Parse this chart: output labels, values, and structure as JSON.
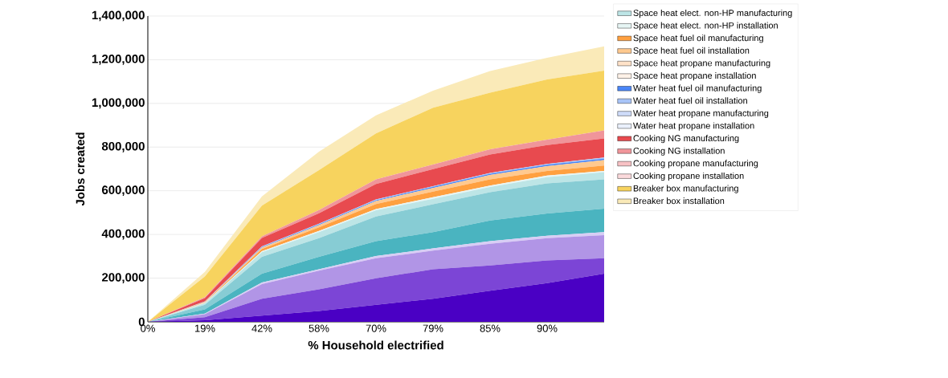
{
  "chart_data": {
    "type": "area",
    "stacked": true,
    "xlabel": "% Household electrified",
    "ylabel": "Jobs created",
    "categories": [
      "0%",
      "19%",
      "42%",
      "58%",
      "70%",
      "79%",
      "85%",
      "90%",
      null
    ],
    "ylim": [
      0,
      1400000
    ],
    "yticks": [
      0,
      {
        "value": 200000,
        "label": "200,000"
      },
      {
        "value": 400000,
        "label": "400,000"
      },
      {
        "value": 600000,
        "label": "600,000"
      },
      {
        "value": 800000,
        "label": "800,000"
      },
      {
        "value": 1000000,
        "label": "1,000,000"
      },
      {
        "value": 1200000,
        "label": "1,200,000"
      },
      {
        "value": 1400000,
        "label": "1,400,000"
      }
    ],
    "grid": "y",
    "legend": "right",
    "series": [
      {
        "color": "#4a00c4",
        "values": [
          0,
          7000,
          28000,
          50000,
          78000,
          106000,
          142000,
          177000,
          220000
        ]
      },
      {
        "color": "#7c45d6",
        "values": [
          0,
          14000,
          78000,
          99000,
          121000,
          135000,
          116000,
          104000,
          71000
        ]
      },
      {
        "color": "#b195e6",
        "values": [
          0,
          14000,
          67000,
          85000,
          92000,
          85000,
          99000,
          102000,
          106000
        ]
      },
      {
        "color": "#d8cdf5",
        "values": [
          0,
          3000,
          7000,
          7000,
          10000,
          10000,
          12000,
          11000,
          14000
        ]
      },
      {
        "color": "#4ab4c0",
        "values": [
          0,
          19000,
          40000,
          57000,
          68000,
          75000,
          95000,
          102000,
          107000
        ]
      },
      {
        "color": "#87ccd4",
        "values": [
          0,
          21000,
          78000,
          85000,
          113000,
          127000,
          129000,
          138000,
          134000
        ]
      },
      {
        "name": "Space heat elect. non-HP manufacturing",
        "color": "#bde5e6",
        "values": [
          0,
          7000,
          21000,
          28000,
          29000,
          25000,
          24000,
          28000,
          33000
        ]
      },
      {
        "name": "Space heat elect. non-HP installation",
        "color": "#e6f5f4",
        "values": [
          0,
          2000,
          4000,
          5000,
          5000,
          7000,
          7000,
          8000,
          6000
        ]
      },
      {
        "name": "Space heat fuel oil manufacturing",
        "color": "#ffa040",
        "values": [
          0,
          2000,
          10000,
          17000,
          23000,
          26000,
          28000,
          21000,
          25000
        ]
      },
      {
        "name": "Space heat fuel oil installation",
        "color": "#ffc98f",
        "values": [
          0,
          3000,
          7000,
          10000,
          14000,
          17000,
          20000,
          22000,
          24000
        ]
      },
      {
        "name": "Space heat propane manufacturing",
        "color": "#ffe2c8",
        "values": [
          null,
          null,
          null,
          null,
          null,
          null,
          null,
          null,
          null
        ]
      },
      {
        "name": "Space heat propane installation",
        "color": "#fff2e8",
        "values": [
          null,
          null,
          null,
          null,
          null,
          null,
          null,
          null,
          null
        ]
      },
      {
        "name": "Water heat fuel oil manufacturing",
        "color": "#4a86f7",
        "values": [
          0,
          1000,
          3000,
          3000,
          4000,
          5000,
          6000,
          6000,
          7000
        ]
      },
      {
        "name": "Water heat fuel oil installation",
        "color": "#a8c4f7",
        "values": [
          0,
          1000,
          2000,
          3000,
          3000,
          3000,
          4000,
          4000,
          5000
        ]
      },
      {
        "name": "Water heat propane manufacturing",
        "color": "#cfdcf9",
        "values": [
          null,
          null,
          null,
          null,
          null,
          null,
          null,
          null,
          null
        ]
      },
      {
        "name": "Water heat propane installation",
        "color": "#eaf0fc",
        "values": [
          null,
          null,
          null,
          null,
          null,
          null,
          null,
          null,
          null
        ]
      },
      {
        "name": "Cooking NG manufacturing",
        "color": "#e84a4f",
        "values": [
          0,
          14000,
          39000,
          48000,
          71000,
          78000,
          84000,
          86000,
          88000
        ]
      },
      {
        "name": "Cooking NG installation",
        "color": "#f0959a",
        "values": [
          0,
          5000,
          7000,
          15000,
          21000,
          21000,
          24000,
          25000,
          36000
        ]
      },
      {
        "name": "Cooking propane manufacturing",
        "color": "#f7c1c4",
        "values": [
          null,
          null,
          null,
          null,
          null,
          null,
          null,
          null,
          null
        ]
      },
      {
        "name": "Cooking propane installation",
        "color": "#fbdadc",
        "values": [
          null,
          null,
          null,
          null,
          null,
          null,
          null,
          null,
          null
        ]
      },
      {
        "name": "Breaker box manufacturing",
        "color": "#f7d35e",
        "values": [
          0,
          95000,
          141000,
          182000,
          211000,
          260000,
          259000,
          276000,
          274000
        ]
      },
      {
        "name": "Breaker box installation",
        "color": "#faeab8",
        "values": [
          0,
          21000,
          42000,
          85000,
          82000,
          78000,
          99000,
          99000,
          111000
        ]
      }
    ]
  }
}
